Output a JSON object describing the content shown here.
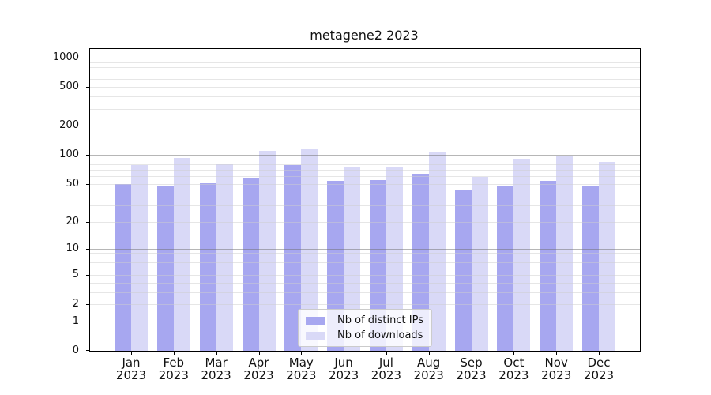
{
  "chart_data": {
    "type": "bar",
    "title": "metagene2 2023",
    "categories": [
      "Jan",
      "Feb",
      "Mar",
      "Apr",
      "May",
      "Jun",
      "Jul",
      "Aug",
      "Sep",
      "Oct",
      "Nov",
      "Dec"
    ],
    "category_year": "2023",
    "series": [
      {
        "name": "Nb of distinct IPs",
        "color": "#a7a7f0",
        "values": [
          50,
          48,
          51,
          58,
          78,
          54,
          55,
          64,
          43,
          48,
          54,
          48
        ]
      },
      {
        "name": "Nb of downloads",
        "color": "#d9d9f7",
        "values": [
          78,
          93,
          80,
          110,
          114,
          74,
          76,
          107,
          59,
          92,
          98,
          85
        ]
      }
    ],
    "y_scale": "log1p",
    "ylim": [
      0,
      1227
    ],
    "y_ticks": [
      0,
      1,
      2,
      5,
      10,
      20,
      50,
      100,
      200,
      500,
      1000
    ],
    "y_major_gridlines": [
      1,
      10,
      100,
      1000
    ],
    "grid": true,
    "legend_position": "lower center"
  }
}
